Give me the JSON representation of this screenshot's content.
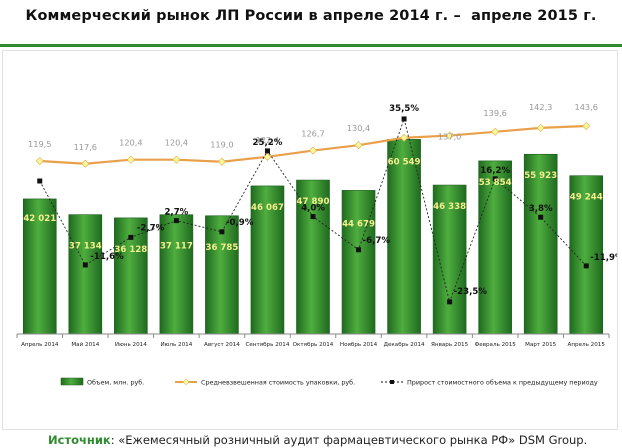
{
  "page": {
    "title": "Коммерческий рынок ЛП России в апреле 2014 г. –  апреле 2015 г.",
    "source_prefix": "Источник",
    "source_text": ": «Ежемесячный розничный аудит фармацевтического рынка РФ» DSM Group."
  },
  "colors": {
    "bar": "#2f8f2f",
    "bar_dark": "#1f6a1f",
    "bar_light": "#4fae3f",
    "line": "#e9a04a",
    "line_marker": "#fff59a",
    "growth_line": "#222222",
    "price_label": "#999999",
    "bar_label": "#f4f08c",
    "accent": "#2e8b2e"
  },
  "chart_data": {
    "type": "bar",
    "categories": [
      "Апрель 2014",
      "Май 2014",
      "Июнь 2014",
      "Июль 2014",
      "Август 2014",
      "Сентябрь 2014",
      "Октябрь 2014",
      "Ноябрь 2014",
      "Декабрь 2014",
      "Январь 2015",
      "Февраль 2015",
      "Март 2015",
      "Апрель 2015"
    ],
    "series": [
      {
        "name": "Объем, млн. руб.",
        "kind": "bar",
        "values": [
          42021,
          37134,
          36128,
          37117,
          36785,
          46067,
          47890,
          44679,
          60549,
          46338,
          53854,
          55923,
          49244
        ],
        "labels": [
          "42 021",
          "37 134",
          "36 128",
          "37 117",
          "36 785",
          "46 067",
          "47 890",
          "44 679",
          "60 549",
          "46 338",
          "53 854",
          "55 923",
          "49 244"
        ]
      },
      {
        "name": "Средневзвешенная стоимость упаковки, руб.",
        "kind": "line",
        "values": [
          119.5,
          117.6,
          120.4,
          120.4,
          119.0,
          122.4,
          126.7,
          130.4,
          135.5,
          137.0,
          139.6,
          142.3,
          143.6
        ],
        "labels": [
          "119,5",
          "117,6",
          "120,4",
          "120,4",
          "119,0",
          "122,4",
          "126,7",
          "130,4",
          "",
          "137,0",
          "139,6",
          "142,3",
          "143,6"
        ]
      },
      {
        "name": "Прирост стоимостного объема к предыдущему периоду",
        "kind": "dashed-line",
        "values": [
          null,
          -11.6,
          -2.7,
          2.7,
          -0.9,
          25.2,
          4.0,
          -6.7,
          35.5,
          -23.5,
          16.2,
          3.8,
          -11.9
        ],
        "labels": [
          "",
          "-11,6%",
          "-2,7%",
          "2,7%",
          "-0,9%",
          "25,2%",
          "4,0%",
          "-6,7%",
          "35,5%",
          "-23,5%",
          "16,2%",
          "3,8%",
          "-11,9%"
        ]
      }
    ],
    "ylim": [
      0,
      70000
    ],
    "grid": false,
    "legend_position": "bottom"
  }
}
